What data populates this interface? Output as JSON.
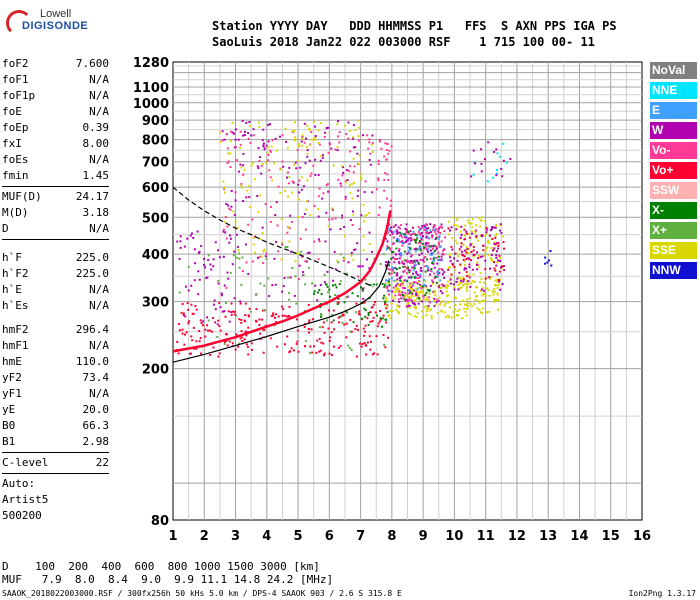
{
  "logo": {
    "line1": "Lowell",
    "line2": "DIGISONDE"
  },
  "header": {
    "line1": "Station YYYY DAY   DDD HHMMSS P1   FFS  S AXN PPS IGA PS",
    "line2": "SaoLuis 2018 Jan22 022 003000 RSF    1 715 100 00- 11"
  },
  "params": {
    "group1": [
      {
        "name": "foF2",
        "value": "7.600"
      },
      {
        "name": "foF1",
        "value": "N/A"
      },
      {
        "name": "foF1p",
        "value": "N/A"
      },
      {
        "name": "foE",
        "value": "N/A"
      },
      {
        "name": "foEp",
        "value": "0.39"
      },
      {
        "name": "fxI",
        "value": "8.00"
      },
      {
        "name": "foEs",
        "value": "N/A"
      },
      {
        "name": "fmin",
        "value": "1.45"
      }
    ],
    "group2": [
      {
        "name": "MUF(D)",
        "value": "24.17"
      },
      {
        "name": "M(D)",
        "value": "3.18"
      },
      {
        "name": "D",
        "value": "N/A"
      }
    ],
    "group3": [
      {
        "name": "h`F",
        "value": "225.0"
      },
      {
        "name": "h`F2",
        "value": "225.0"
      },
      {
        "name": "h`E",
        "value": "N/A"
      },
      {
        "name": "h`Es",
        "value": "N/A"
      }
    ],
    "group4": [
      {
        "name": "hmF2",
        "value": "296.4"
      },
      {
        "name": "hmF1",
        "value": "N/A"
      },
      {
        "name": "hmE",
        "value": "110.0"
      },
      {
        "name": "yF2",
        "value": "73.4"
      },
      {
        "name": "yF1",
        "value": "N/A"
      },
      {
        "name": "yE",
        "value": "20.0"
      },
      {
        "name": "B0",
        "value": "66.3"
      },
      {
        "name": "B1",
        "value": "2.98"
      }
    ],
    "clevel": {
      "name": "C-level",
      "value": "22"
    },
    "auto": [
      "Auto:",
      "Artist5",
      "500200"
    ]
  },
  "legend": [
    {
      "label": "NoVal",
      "color": "#808080"
    },
    {
      "label": "NNE",
      "color": "#00e5ff"
    },
    {
      "label": "E",
      "color": "#3fa0ff"
    },
    {
      "label": "W",
      "color": "#b000b0"
    },
    {
      "label": "Vo-",
      "color": "#ff3a96"
    },
    {
      "label": "Vo+",
      "color": "#ff0030"
    },
    {
      "label": "SSW",
      "color": "#ffb0b0"
    },
    {
      "label": "X-",
      "color": "#008000"
    },
    {
      "label": "X+",
      "color": "#60b040"
    },
    {
      "label": "SSE",
      "color": "#d8d800"
    },
    {
      "label": "NNW",
      "color": "#1010d0"
    }
  ],
  "chart_data": {
    "type": "scatter",
    "xlabel": "",
    "ylabel": "",
    "xlim": [
      1,
      16
    ],
    "ylim": [
      80,
      1280
    ],
    "y_scale": "log",
    "x_ticks": [
      1,
      2,
      3,
      4,
      5,
      6,
      7,
      8,
      9,
      10,
      11,
      12,
      13,
      14,
      15,
      16
    ],
    "y_ticks": [
      80,
      200,
      300,
      400,
      500,
      600,
      700,
      800,
      900,
      1000,
      1100,
      1280
    ],
    "grid": true,
    "lines": [
      {
        "name": "profile_solid",
        "color": "#000000",
        "dash": false,
        "x": [
          1.0,
          2.0,
          3.0,
          4.0,
          5.0,
          6.0,
          6.5,
          7.0,
          7.3,
          7.6,
          7.8,
          7.9
        ],
        "y": [
          208,
          218,
          230,
          243,
          258,
          273,
          283,
          296,
          308,
          330,
          360,
          385
        ]
      },
      {
        "name": "profile_dashed",
        "color": "#000000",
        "dash": true,
        "x": [
          1.0,
          1.5,
          2.0,
          2.5,
          3.0,
          3.5,
          4.0,
          4.5,
          5.0,
          5.5,
          6.0,
          6.5,
          7.0,
          7.4
        ],
        "y": [
          600,
          555,
          520,
          492,
          468,
          450,
          430,
          415,
          400,
          385,
          370,
          355,
          340,
          328
        ]
      },
      {
        "name": "trace_o",
        "color": "#ff0030",
        "dash": false,
        "x": [
          1.0,
          1.5,
          2.0,
          2.5,
          3.0,
          3.5,
          4.0,
          4.5,
          5.0,
          5.5,
          6.0,
          6.5,
          7.0,
          7.3,
          7.5,
          7.7,
          7.85,
          7.95
        ],
        "y": [
          222,
          226,
          230,
          236,
          242,
          250,
          258,
          266,
          276,
          288,
          300,
          316,
          338,
          362,
          390,
          425,
          470,
          520
        ]
      }
    ],
    "scatter_clusters": [
      {
        "color": "#ff0030",
        "xr": [
          1.1,
          7.9
        ],
        "yr": [
          215,
          300
        ],
        "n": 250
      },
      {
        "color": "#008000",
        "xr": [
          5.5,
          7.9
        ],
        "yr": [
          250,
          340
        ],
        "n": 60
      },
      {
        "color": "#b000b0",
        "xr": [
          7.8,
          9.7
        ],
        "yr": [
          290,
          480
        ],
        "n": 220
      },
      {
        "color": "#ff3a96",
        "xr": [
          7.8,
          9.7
        ],
        "yr": [
          300,
          480
        ],
        "n": 160
      },
      {
        "color": "#3fa0ff",
        "xr": [
          7.8,
          9.6
        ],
        "yr": [
          320,
          470
        ],
        "n": 80
      },
      {
        "color": "#d8d800",
        "xr": [
          7.8,
          11.5
        ],
        "yr": [
          270,
          340
        ],
        "n": 220
      },
      {
        "color": "#d8d800",
        "xr": [
          9.8,
          11.6
        ],
        "yr": [
          330,
          500
        ],
        "n": 110
      },
      {
        "color": "#b000b0",
        "xr": [
          9.8,
          11.6
        ],
        "yr": [
          320,
          480
        ],
        "n": 90
      },
      {
        "color": "#ff0030",
        "xr": [
          9.8,
          11.6
        ],
        "yr": [
          330,
          470
        ],
        "n": 50
      },
      {
        "color": "#008000",
        "xr": [
          7.8,
          9.5
        ],
        "yr": [
          300,
          460
        ],
        "n": 60
      },
      {
        "color": "#b000b0",
        "xr": [
          2.5,
          7.4
        ],
        "yr": [
          300,
          900
        ],
        "n": 180
      },
      {
        "color": "#ff3a96",
        "xr": [
          2.5,
          7.4
        ],
        "yr": [
          320,
          850
        ],
        "n": 120
      },
      {
        "color": "#d8d800",
        "xr": [
          2.5,
          7.4
        ],
        "yr": [
          380,
          900
        ],
        "n": 140
      },
      {
        "color": "#60b040",
        "xr": [
          1.1,
          7.8
        ],
        "yr": [
          220,
          420
        ],
        "n": 70
      },
      {
        "color": "#b000b0",
        "xr": [
          1.1,
          3.0
        ],
        "yr": [
          260,
          460
        ],
        "n": 60
      },
      {
        "color": "#ff3a96",
        "xr": [
          7.5,
          8.0
        ],
        "yr": [
          500,
          800
        ],
        "n": 30
      },
      {
        "color": "#00e5ff",
        "xr": [
          10.5,
          12.0
        ],
        "yr": [
          620,
          800
        ],
        "n": 10
      },
      {
        "color": "#1010d0",
        "xr": [
          12.9,
          13.2
        ],
        "yr": [
          370,
          420
        ],
        "n": 6
      },
      {
        "color": "#b000b0",
        "xr": [
          10.5,
          11.8
        ],
        "yr": [
          620,
          790
        ],
        "n": 15
      }
    ]
  },
  "bottom": {
    "d_row": "D    100  200  400  600  800 1000 1500 3000 [km]",
    "muf_row": "MUF   7.9  8.0  8.4  9.0  9.9 11.1 14.8 24.2 [MHz]"
  },
  "footer": {
    "left": "SAAOK_2018022003000.RSF / 300fx256h 50 kHs 5.0 km / DPS-4 SAAOK 903 / 2.6 S 315.8 E",
    "right": "Ion2Png 1.3.17"
  }
}
